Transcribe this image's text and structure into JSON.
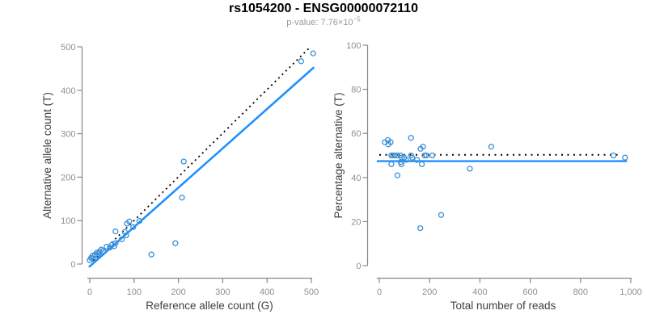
{
  "header": {
    "title": "rs1054200 - ENSG00000072110",
    "pvalue_label": "p-value: 7.76×10",
    "pvalue_exponent": "−5"
  },
  "colors": {
    "background": "#ffffff",
    "point_stroke": "#3d8fd6",
    "fit_line_blue": "#1e90ff",
    "reference_line_black": "#000000",
    "axis_line": "#888888",
    "tick_label": "#8f8f8f",
    "axis_title": "#404040",
    "title": "#000000",
    "subtitle": "#999999"
  },
  "chart_data": [
    {
      "type": "scatter",
      "name": "allele-counts-scatter",
      "xlabel": "Reference allele count (G)",
      "ylabel": "Alternative allele count (T)",
      "xlim": [
        0,
        500
      ],
      "ylim": [
        0,
        500
      ],
      "xticks": [
        0,
        100,
        200,
        300,
        400,
        500
      ],
      "xtick_labels": [
        "0",
        "100",
        "200",
        "300",
        "400",
        "500"
      ],
      "yticks": [
        0,
        100,
        200,
        300,
        400,
        500
      ],
      "ytick_labels": [
        "0",
        "100",
        "200",
        "300",
        "400",
        "500"
      ],
      "grid": false,
      "legend": false,
      "points": [
        [
          0,
          9
        ],
        [
          3,
          14
        ],
        [
          6,
          19
        ],
        [
          7,
          12
        ],
        [
          12,
          22
        ],
        [
          16,
          26
        ],
        [
          17,
          20
        ],
        [
          20,
          24
        ],
        [
          22,
          29
        ],
        [
          26,
          33
        ],
        [
          30,
          30
        ],
        [
          38,
          40
        ],
        [
          45,
          38
        ],
        [
          50,
          44
        ],
        [
          55,
          41
        ],
        [
          58,
          48
        ],
        [
          58,
          75
        ],
        [
          72,
          57
        ],
        [
          79,
          74
        ],
        [
          82,
          66
        ],
        [
          84,
          93
        ],
        [
          89,
          98
        ],
        [
          98,
          85
        ],
        [
          112,
          99
        ],
        [
          139,
          22
        ],
        [
          193,
          48
        ],
        [
          208,
          153
        ],
        [
          212,
          236
        ],
        [
          477,
          467
        ],
        [
          504,
          485
        ]
      ],
      "lines": [
        {
          "name": "identity-line",
          "style": "dashed",
          "color": "#000000",
          "width": 1.8,
          "dash": "2 4.3",
          "x1": 8,
          "y1": 8,
          "x2": 498,
          "y2": 500
        },
        {
          "name": "regression-line",
          "style": "solid",
          "color": "#1e90ff",
          "width": 2.6,
          "x1": -2,
          "y1": -7,
          "x2": 506,
          "y2": 453
        }
      ]
    },
    {
      "type": "scatter",
      "name": "percentage-vs-reads-scatter",
      "xlabel": "Total number of reads",
      "ylabel": "Percentage alternative (T)",
      "xlim": [
        0,
        1000
      ],
      "ylim": [
        0,
        100
      ],
      "xticks": [
        0,
        200,
        400,
        600,
        800,
        1000
      ],
      "xtick_labels": [
        "0",
        "200",
        "400",
        "600",
        "800",
        "1,000"
      ],
      "yticks": [
        0,
        20,
        40,
        60,
        80,
        100
      ],
      "ytick_labels": [
        "0",
        "20",
        "40",
        "60",
        "80",
        "100"
      ],
      "grid": false,
      "legend": false,
      "points": [
        [
          22,
          56
        ],
        [
          34,
          57
        ],
        [
          36,
          55
        ],
        [
          45,
          56
        ],
        [
          48,
          50
        ],
        [
          48,
          46
        ],
        [
          54,
          50
        ],
        [
          61,
          50
        ],
        [
          72,
          50
        ],
        [
          72,
          41
        ],
        [
          85,
          50
        ],
        [
          85,
          47
        ],
        [
          88,
          46
        ],
        [
          90,
          49
        ],
        [
          99,
          49
        ],
        [
          106,
          48
        ],
        [
          126,
          58
        ],
        [
          126,
          50
        ],
        [
          131,
          49
        ],
        [
          150,
          48
        ],
        [
          163,
          17
        ],
        [
          164,
          53
        ],
        [
          169,
          46
        ],
        [
          174,
          54
        ],
        [
          180,
          50
        ],
        [
          187,
          50
        ],
        [
          211,
          50
        ],
        [
          246,
          23
        ],
        [
          360,
          44
        ],
        [
          445,
          54
        ],
        [
          931,
          50
        ],
        [
          977,
          49
        ]
      ],
      "lines": [
        {
          "name": "expected-50-percent-line",
          "style": "dotted",
          "color": "#000000",
          "width": 2,
          "dash": "2 5.5",
          "x1": 0,
          "y1": 50.3,
          "x2": 955,
          "y2": 50.3
        },
        {
          "name": "mean-percentage-line",
          "style": "solid",
          "color": "#1e90ff",
          "width": 2.4,
          "x1": -10,
          "y1": 47.4,
          "x2": 985,
          "y2": 47.4
        }
      ]
    }
  ]
}
